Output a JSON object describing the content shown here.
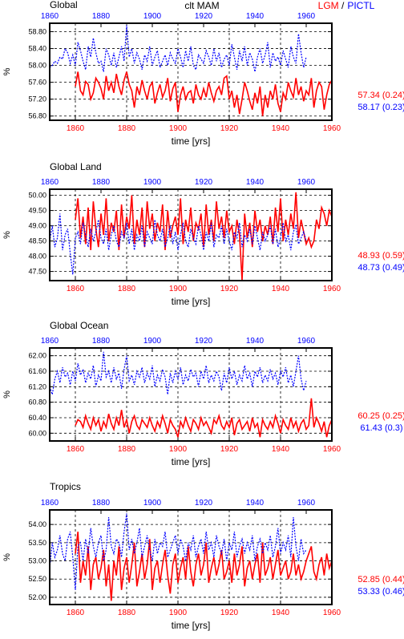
{
  "header": {
    "left_title": "Global",
    "center_title": "clt MAM",
    "legend_lgm": "LGM",
    "legend_sep": " /",
    "legend_pictl": "PICTL"
  },
  "colors": {
    "lgm": "#ff0000",
    "pictl": "#0000ff",
    "axis": "#000000"
  },
  "chart_data": [
    {
      "type": "line",
      "title": "Global",
      "xlabel": "time [yrs]",
      "ylabel": "%",
      "xlim": [
        1850,
        1960
      ],
      "ylim": [
        56.7,
        59.0
      ],
      "yticks": [
        "56.80",
        "57.20",
        "57.60",
        "58.00",
        "58.40",
        "58.80"
      ],
      "xticks": [
        "1860",
        "1880",
        "1900",
        "1920",
        "1940",
        "1960"
      ],
      "top_xticks": [
        "1860",
        "1880",
        "1900",
        "1920",
        "1940",
        "1960"
      ],
      "grid": true,
      "series": [
        {
          "name": "LGM",
          "x_start": 1860,
          "x_end": 1960,
          "mean_label": "57.34 (0.24)",
          "values": [
            57.5,
            57.85,
            57.4,
            57.3,
            57.62,
            57.55,
            57.2,
            57.35,
            57.7,
            57.6,
            57.45,
            57.2,
            57.75,
            57.4,
            57.6,
            57.35,
            57.8,
            57.5,
            57.3,
            57.65,
            57.85,
            57.55,
            57.4,
            57.0,
            57.5,
            57.3,
            57.65,
            57.4,
            57.2,
            57.5,
            57.6,
            57.1,
            57.35,
            57.55,
            57.25,
            57.4,
            57.7,
            57.15,
            57.45,
            57.6,
            56.9,
            57.3,
            57.5,
            57.2,
            57.35,
            57.4,
            57.1,
            57.55,
            57.3,
            57.2,
            57.45,
            57.25,
            57.6,
            57.35,
            57.15,
            57.4,
            57.5,
            57.3,
            57.7,
            57.75,
            57.2,
            57.4,
            57.0,
            57.3,
            56.85,
            57.2,
            57.6,
            57.4,
            57.15,
            56.95,
            57.35,
            57.1,
            57.5,
            56.8,
            57.3,
            57.0,
            57.4,
            57.2,
            57.55,
            57.1,
            56.9,
            57.35,
            57.2,
            57.6,
            57.4,
            57.25,
            57.7,
            57.3,
            57.5,
            57.15,
            57.4,
            57.3,
            57.7,
            57.0,
            57.4,
            57.6,
            57.5,
            56.95,
            57.3,
            57.55,
            57.65
          ]
        },
        {
          "name": "PICTL",
          "x_start": 1850,
          "x_end": 1950,
          "mean_label": "58.17 (0.23)",
          "values": [
            57.95,
            58.0,
            58.1,
            58.05,
            58.2,
            58.15,
            58.4,
            58.3,
            58.05,
            58.25,
            58.0,
            58.55,
            58.35,
            58.1,
            57.9,
            58.45,
            58.2,
            58.65,
            58.3,
            58.05,
            58.1,
            57.85,
            58.4,
            58.25,
            58.0,
            58.3,
            57.95,
            58.2,
            58.45,
            58.1,
            58.95,
            58.2,
            58.4,
            58.05,
            58.3,
            58.15,
            57.9,
            58.25,
            58.1,
            58.45,
            58.0,
            58.2,
            58.35,
            57.95,
            58.1,
            58.25,
            58.0,
            58.3,
            58.15,
            58.05,
            58.4,
            58.2,
            57.95,
            58.35,
            58.1,
            58.45,
            58.0,
            57.9,
            58.25,
            58.15,
            58.05,
            58.35,
            58.2,
            58.0,
            58.4,
            58.1,
            58.3,
            57.95,
            58.15,
            58.25,
            58.0,
            58.5,
            58.2,
            57.9,
            58.35,
            58.1,
            58.45,
            58.0,
            58.3,
            58.15,
            57.85,
            58.2,
            58.4,
            58.05,
            58.25,
            58.55,
            57.95,
            58.3,
            58.1,
            58.2,
            58.0,
            58.35,
            58.15,
            57.95,
            58.45,
            58.2,
            58.05,
            58.75,
            58.3,
            57.95,
            58.2
          ]
        }
      ]
    },
    {
      "type": "line",
      "title": "Global Land",
      "xlabel": "time [yrs]",
      "ylabel": "%",
      "xlim": [
        1850,
        1960
      ],
      "ylim": [
        47.2,
        50.2
      ],
      "yticks": [
        "47.50",
        "48.00",
        "48.50",
        "49.00",
        "49.50",
        "50.00"
      ],
      "xticks": [
        "1860",
        "1880",
        "1900",
        "1920",
        "1940",
        "1960"
      ],
      "top_xticks": [
        "1860",
        "1880",
        "1900",
        "1920",
        "1940",
        "1960"
      ],
      "grid": true,
      "series": [
        {
          "name": "LGM",
          "x_start": 1860,
          "x_end": 1960,
          "mean_label": "48.93 (0.59)",
          "values": [
            49.2,
            49.9,
            48.6,
            49.3,
            48.4,
            49.6,
            48.2,
            49.8,
            48.9,
            48.3,
            49.4,
            48.7,
            49.9,
            48.5,
            49.1,
            48.8,
            49.5,
            48.2,
            49.7,
            48.6,
            49.3,
            48.9,
            50.0,
            48.4,
            49.2,
            48.7,
            49.6,
            48.3,
            49.8,
            48.9,
            49.4,
            48.5,
            49.1,
            48.8,
            49.7,
            48.2,
            49.5,
            48.6,
            49.0,
            49.3,
            48.7,
            49.9,
            48.4,
            49.2,
            48.8,
            49.6,
            48.5,
            49.1,
            48.9,
            49.4,
            48.3,
            49.7,
            48.7,
            49.2,
            48.5,
            49.8,
            48.9,
            49.3,
            48.6,
            49.5,
            48.8,
            49.0,
            48.4,
            49.2,
            48.7,
            47.2,
            49.4,
            48.6,
            49.1,
            48.3,
            49.5,
            48.8,
            49.2,
            48.5,
            49.0,
            48.7,
            49.3,
            48.4,
            49.6,
            48.8,
            49.9,
            48.5,
            49.2,
            48.7,
            49.4,
            48.9,
            50.1,
            48.6,
            49.2,
            48.8,
            48.4,
            48.6,
            48.3,
            48.5,
            49.2,
            48.9,
            49.6,
            49.4,
            49.0,
            49.5,
            49.3
          ]
        },
        {
          "name": "PICTL",
          "x_start": 1850,
          "x_end": 1950,
          "mean_label": "48.73 (0.49)",
          "values": [
            48.5,
            49.0,
            48.3,
            48.6,
            49.4,
            48.2,
            48.7,
            48.9,
            48.1,
            47.4,
            48.6,
            48.8,
            48.4,
            49.1,
            48.7,
            48.3,
            48.9,
            48.5,
            48.8,
            49.2,
            48.6,
            48.4,
            48.9,
            48.2,
            48.7,
            49.0,
            48.5,
            48.3,
            48.8,
            48.6,
            49.1,
            48.4,
            48.9,
            48.2,
            48.7,
            48.5,
            49.0,
            48.3,
            48.8,
            48.6,
            48.4,
            49.2,
            48.7,
            48.5,
            48.9,
            48.3,
            48.6,
            49.0,
            48.4,
            48.8,
            48.2,
            48.7,
            49.1,
            48.5,
            48.3,
            48.9,
            48.6,
            48.4,
            49.0,
            48.7,
            48.2,
            48.8,
            48.5,
            49.1,
            48.3,
            48.7,
            48.6,
            49.0,
            48.4,
            48.9,
            48.5,
            48.2,
            48.8,
            48.6,
            49.1,
            48.3,
            48.7,
            48.5,
            48.9,
            48.4,
            49.0,
            48.6,
            48.2,
            48.8,
            48.5,
            48.7,
            49.0,
            48.4,
            48.9,
            48.3,
            48.6,
            49.1,
            48.5,
            48.7,
            48.2,
            48.8,
            49.0,
            48.4,
            48.6,
            48.8,
            48.5
          ]
        }
      ]
    },
    {
      "type": "line",
      "title": "Global Ocean",
      "xlabel": "time [yrs]",
      "ylabel": "%",
      "xlim": [
        1850,
        1960
      ],
      "ylim": [
        59.8,
        62.2
      ],
      "yticks": [
        "60.00",
        "60.40",
        "60.80",
        "61.20",
        "61.60",
        "62.00"
      ],
      "xticks": [
        "1860",
        "1880",
        "1900",
        "1920",
        "1940",
        "1960"
      ],
      "top_xticks": [
        "1860",
        "1880",
        "1900",
        "1920",
        "1940",
        "1960"
      ],
      "grid": true,
      "series": [
        {
          "name": "LGM",
          "x_start": 1860,
          "x_end": 1960,
          "mean_label": "60.25 (0.25)",
          "values": [
            60.2,
            60.35,
            60.3,
            60.15,
            60.45,
            60.25,
            60.1,
            60.4,
            60.2,
            60.35,
            60.05,
            60.3,
            60.15,
            60.5,
            60.25,
            60.1,
            60.4,
            60.2,
            60.6,
            60.15,
            60.35,
            60.0,
            60.3,
            60.45,
            60.2,
            60.1,
            60.35,
            60.25,
            60.15,
            60.4,
            60.2,
            60.05,
            60.3,
            60.15,
            60.45,
            60.25,
            60.0,
            60.35,
            60.2,
            60.1,
            59.9,
            60.3,
            60.15,
            60.4,
            60.2,
            60.05,
            60.35,
            60.25,
            60.1,
            60.4,
            60.2,
            60.3,
            60.15,
            60.0,
            60.35,
            60.25,
            60.45,
            60.2,
            60.1,
            60.3,
            60.15,
            60.4,
            59.95,
            60.25,
            60.35,
            60.1,
            60.2,
            60.3,
            60.05,
            60.4,
            60.15,
            60.25,
            59.9,
            60.35,
            60.2,
            60.1,
            60.3,
            60.15,
            60.45,
            60.25,
            60.0,
            60.35,
            60.2,
            60.1,
            60.4,
            60.15,
            60.3,
            60.05,
            60.25,
            60.35,
            60.1,
            60.2,
            60.9,
            60.15,
            60.4,
            60.25,
            60.05,
            60.3,
            59.9,
            60.2,
            60.35
          ]
        },
        {
          "name": "PICTL",
          "x_start": 1850,
          "x_end": 1950,
          "mean_label": "61.43 (0.3)",
          "values": [
            61.2,
            61.0,
            61.4,
            61.6,
            61.3,
            61.7,
            61.45,
            61.55,
            61.25,
            61.6,
            61.35,
            61.8,
            61.5,
            61.65,
            61.3,
            61.55,
            61.4,
            61.75,
            61.2,
            61.5,
            61.35,
            62.1,
            61.45,
            61.6,
            61.3,
            61.7,
            61.4,
            61.55,
            61.15,
            61.65,
            62.0,
            61.35,
            61.5,
            61.25,
            61.6,
            61.45,
            61.7,
            61.3,
            61.55,
            61.4,
            61.75,
            61.2,
            61.5,
            61.35,
            61.65,
            61.45,
            61.0,
            61.55,
            61.3,
            61.6,
            61.4,
            61.7,
            61.25,
            61.5,
            61.35,
            61.65,
            61.45,
            61.55,
            61.2,
            61.6,
            61.4,
            61.75,
            61.3,
            61.5,
            61.35,
            61.6,
            61.45,
            61.1,
            61.55,
            61.3,
            61.7,
            61.4,
            61.6,
            61.25,
            61.5,
            61.35,
            61.75,
            61.4,
            61.55,
            61.2,
            61.6,
            61.45,
            61.7,
            61.3,
            61.5,
            61.35,
            61.65,
            61.4,
            61.55,
            61.25,
            61.6,
            61.45,
            61.7,
            61.3,
            61.5,
            61.2,
            61.6,
            62.0,
            61.4,
            61.1,
            61.35
          ]
        }
      ]
    },
    {
      "type": "line",
      "title": "Tropics",
      "xlabel": "time [yrs]",
      "ylabel": "%",
      "xlim": [
        1850,
        1960
      ],
      "ylim": [
        51.8,
        54.4
      ],
      "yticks": [
        "52.00",
        "52.50",
        "53.00",
        "53.50",
        "54.00"
      ],
      "xticks": [
        "1860",
        "1880",
        "1900",
        "1920",
        "1940",
        "1960"
      ],
      "top_xticks": [
        "1860",
        "1880",
        "1900",
        "1920",
        "1940",
        "1960"
      ],
      "grid": true,
      "series": [
        {
          "name": "LGM",
          "x_start": 1860,
          "x_end": 1960,
          "mean_label": "52.85 (0.44)",
          "values": [
            53.2,
            53.8,
            52.4,
            53.0,
            52.6,
            53.4,
            52.2,
            52.9,
            53.1,
            52.5,
            52.8,
            53.3,
            52.3,
            52.9,
            51.9,
            53.0,
            52.6,
            53.4,
            52.2,
            52.8,
            53.1,
            52.4,
            52.9,
            53.5,
            52.3,
            52.7,
            53.2,
            52.5,
            52.9,
            53.6,
            52.2,
            52.8,
            53.0,
            52.4,
            52.9,
            53.3,
            52.6,
            52.1,
            52.9,
            53.2,
            52.4,
            52.8,
            53.1,
            52.5,
            53.4,
            52.7,
            52.3,
            52.9,
            53.2,
            52.6,
            52.9,
            53.5,
            52.4,
            52.8,
            53.1,
            52.6,
            52.9,
            53.3,
            52.5,
            52.7,
            53.0,
            52.4,
            53.2,
            52.6,
            52.9,
            53.4,
            52.3,
            52.8,
            53.0,
            52.5,
            52.9,
            53.2,
            52.4,
            53.5,
            52.6,
            52.8,
            53.1,
            52.5,
            52.9,
            53.3,
            52.6,
            52.8,
            53.0,
            52.5,
            52.7,
            53.2,
            52.6,
            52.9,
            52.5,
            52.7,
            53.0,
            53.2,
            53.4,
            52.7,
            52.5,
            52.9,
            53.1,
            52.6,
            53.2,
            52.8,
            53.0
          ]
        },
        {
          "name": "PICTL",
          "x_start": 1850,
          "x_end": 1950,
          "mean_label": "53.33 (0.46)",
          "values": [
            52.8,
            53.5,
            53.1,
            53.3,
            53.7,
            53.2,
            53.0,
            53.6,
            53.8,
            53.1,
            52.2,
            53.4,
            53.5,
            53.0,
            53.6,
            53.2,
            53.9,
            53.4,
            53.1,
            53.5,
            53.7,
            53.0,
            53.3,
            54.2,
            53.4,
            53.2,
            53.6,
            53.5,
            53.1,
            53.8,
            54.3,
            53.3,
            53.6,
            53.2,
            53.5,
            53.9,
            53.1,
            53.4,
            53.7,
            53.3,
            53.0,
            53.6,
            53.2,
            53.5,
            53.4,
            53.8,
            53.1,
            53.3,
            53.5,
            53.7,
            53.2,
            53.6,
            53.4,
            53.0,
            53.5,
            53.3,
            53.7,
            53.1,
            53.4,
            53.6,
            53.2,
            53.8,
            53.3,
            53.5,
            53.1,
            53.7,
            53.4,
            53.2,
            53.6,
            53.0,
            53.5,
            53.3,
            53.8,
            53.1,
            53.4,
            53.6,
            53.2,
            53.5,
            53.3,
            53.7,
            53.0,
            53.4,
            53.6,
            53.2,
            53.5,
            53.3,
            53.7,
            53.1,
            53.4,
            53.9,
            53.2,
            53.5,
            53.3,
            53.7,
            53.1,
            54.2,
            53.4,
            53.0,
            53.6,
            53.2,
            53.3
          ]
        }
      ]
    }
  ]
}
